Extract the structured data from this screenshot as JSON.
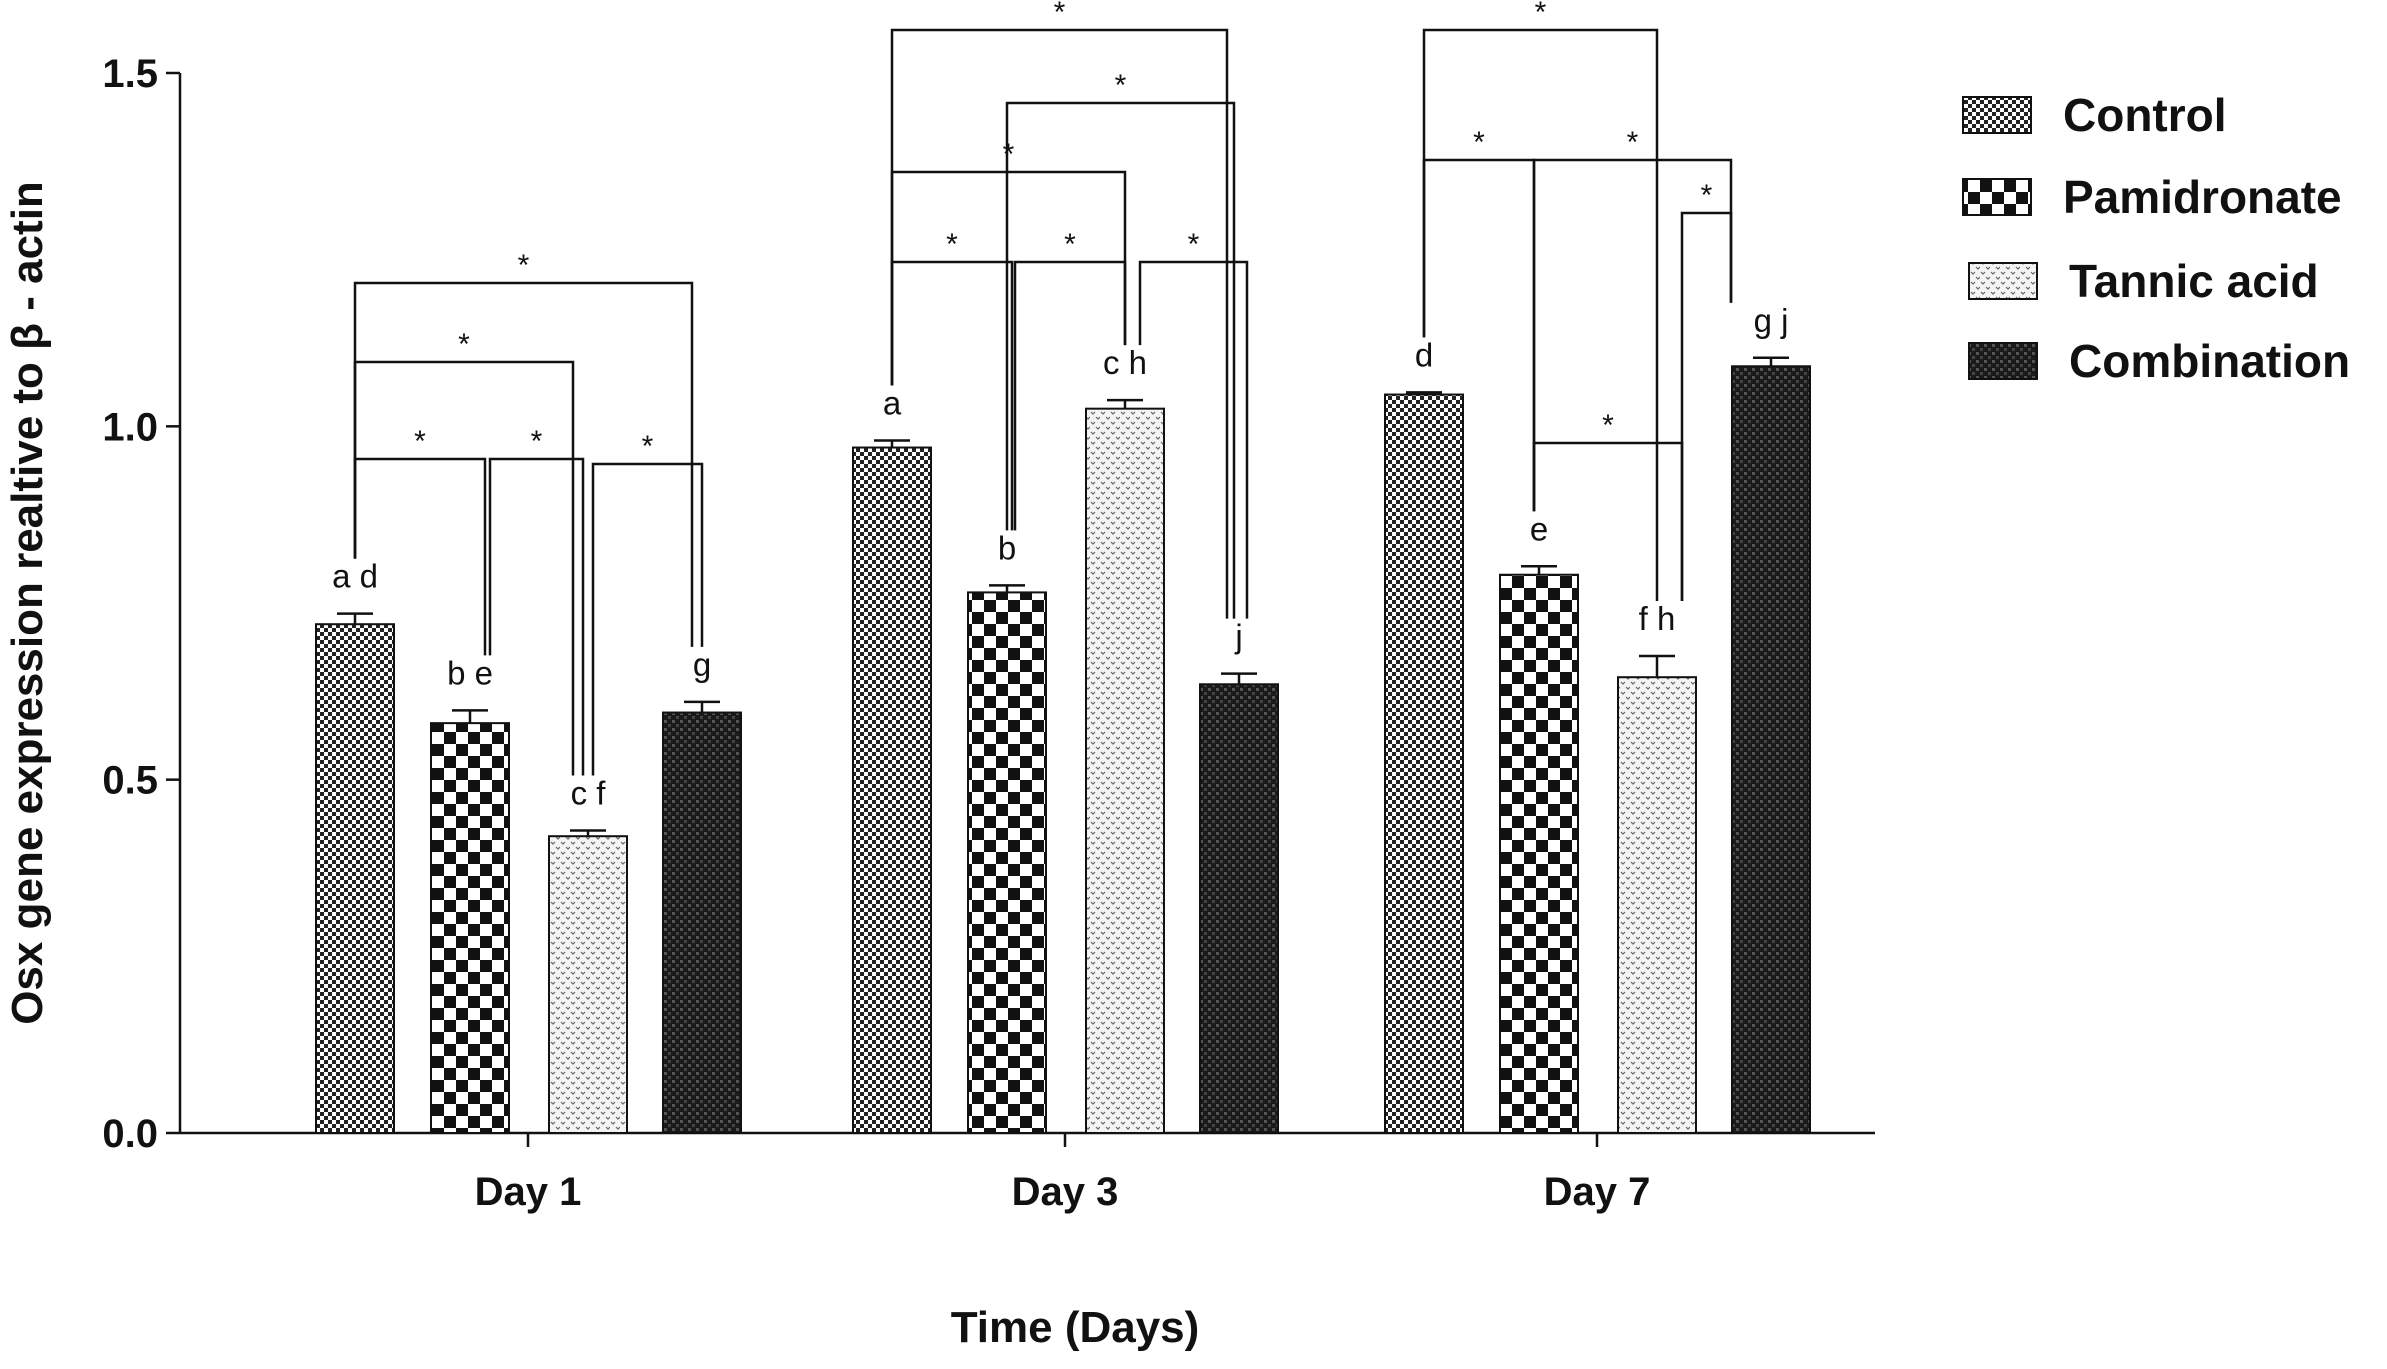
{
  "chart_data": {
    "type": "bar",
    "title": "",
    "xlabel": "Time (Days)",
    "ylabel": "Osx gene expression realtive to β - actin",
    "ylim": [
      0,
      1.5
    ],
    "yticks": [
      "0.0",
      "0.5",
      "1.0",
      "1.5"
    ],
    "categories": [
      "Day 1",
      "Day 3",
      "Day 7"
    ],
    "series": [
      {
        "name": "Control",
        "pattern": "fine-check",
        "values": [
          0.72,
          0.97,
          1.045
        ],
        "errors": [
          0.015,
          0.01,
          0.003
        ],
        "labels": [
          "a d",
          "a",
          "d"
        ]
      },
      {
        "name": "Pamidronate",
        "pattern": "coarse-check",
        "values": [
          0.58,
          0.765,
          0.79
        ],
        "errors": [
          0.018,
          0.01,
          0.012
        ],
        "labels": [
          "b e",
          "b",
          "e"
        ]
      },
      {
        "name": "Tannic acid",
        "pattern": "dotted",
        "values": [
          0.42,
          1.025,
          0.645
        ],
        "errors": [
          0.008,
          0.012,
          0.03
        ],
        "labels": [
          "c f",
          "c h",
          "f h"
        ]
      },
      {
        "name": "Combination",
        "pattern": "dark-hatch",
        "values": [
          0.595,
          0.635,
          1.085
        ],
        "errors": [
          0.015,
          0.015,
          0.012
        ],
        "labels": [
          "g",
          "j",
          "g j"
        ]
      }
    ],
    "significance_marker": "*",
    "legend_position": "right"
  }
}
